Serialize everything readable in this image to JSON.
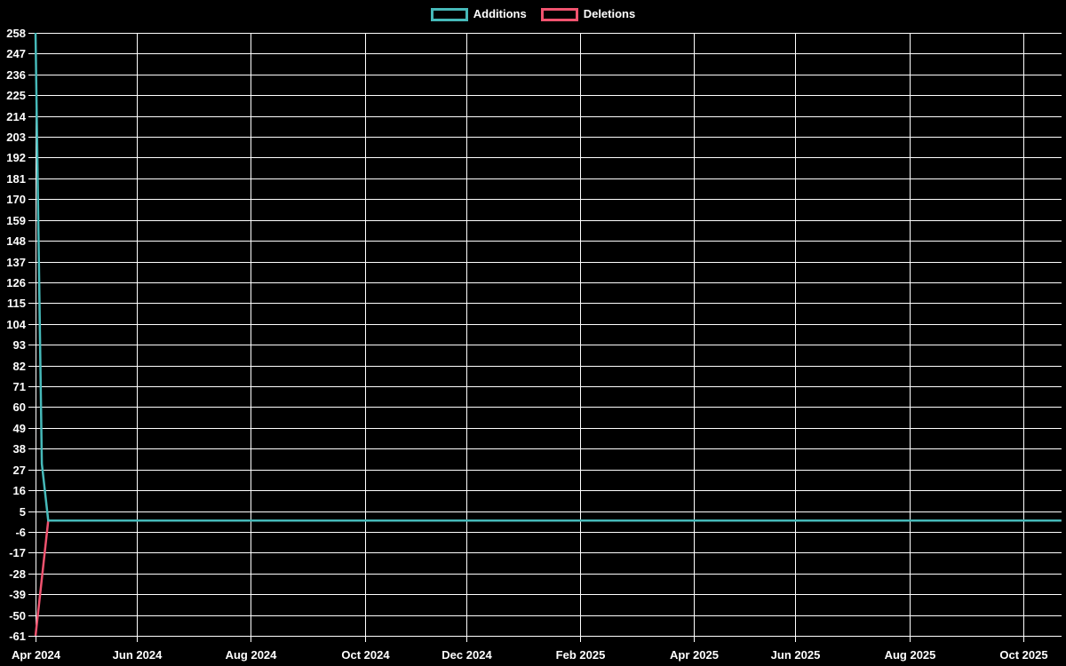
{
  "page": {
    "background_color": "#000000",
    "text_color": "#ffffff",
    "grid_color": "#ffffff"
  },
  "legend": {
    "items": [
      {
        "label": "Additions",
        "color": "#46b9b9"
      },
      {
        "label": "Deletions",
        "color": "#f0536f"
      }
    ]
  },
  "chart_data": {
    "type": "line",
    "title": "",
    "background": "#000000",
    "text_color": "#ffffff",
    "grid": {
      "visible": true,
      "color": "#ffffff"
    },
    "legend_position": "top-center",
    "x_axis": {
      "unit": "weeks since first data point (weekly git additions/deletions chart)",
      "ticks": [
        {
          "label": "Apr 2024",
          "week": 0
        },
        {
          "label": "Jun 2024",
          "week": 8
        },
        {
          "label": "Aug 2024",
          "week": 17
        },
        {
          "label": "Oct 2024",
          "week": 26
        },
        {
          "label": "Dec 2024",
          "week": 34
        },
        {
          "label": "Feb 2025",
          "week": 43
        },
        {
          "label": "Apr 2025",
          "week": 52
        },
        {
          "label": "Jun 2025",
          "week": 60
        },
        {
          "label": "Aug 2025",
          "week": 69
        },
        {
          "label": "Oct 2025",
          "week": 78
        }
      ],
      "week_span_drawn": 81
    },
    "y_axis": {
      "min": -61,
      "max": 258,
      "tick_step": 11,
      "tick_labels": [
        258,
        247,
        236,
        225,
        214,
        203,
        192,
        181,
        170,
        159,
        148,
        137,
        126,
        115,
        104,
        93,
        82,
        71,
        60,
        49,
        38,
        27,
        16,
        5,
        -6,
        -17,
        -28,
        -39,
        -50,
        -61
      ]
    },
    "series": [
      {
        "name": "Additions",
        "color": "#46b9b9",
        "points": [
          [
            0,
            258
          ],
          [
            0.5,
            30
          ],
          [
            1,
            0
          ],
          [
            81,
            0
          ]
        ]
      },
      {
        "name": "Deletions",
        "color": "#f0536f",
        "points": [
          [
            0,
            -61
          ],
          [
            1,
            0
          ],
          [
            81,
            0
          ]
        ]
      }
    ]
  }
}
